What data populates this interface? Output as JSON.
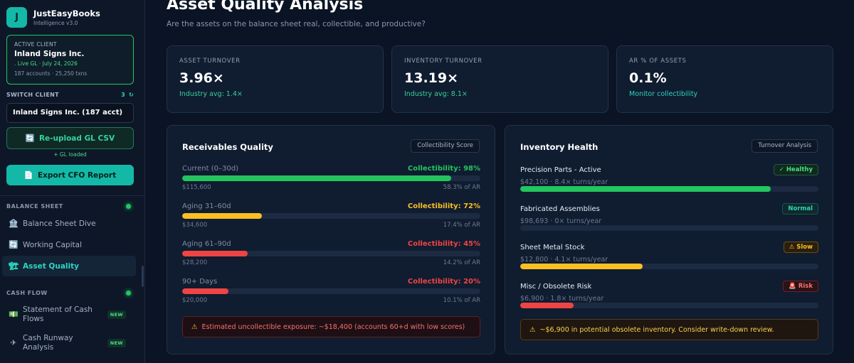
{
  "brand": {
    "logo_letter": "J",
    "name": "JustEasyBooks",
    "version": "Intelligence v3.0"
  },
  "client_card": {
    "label": "ACTIVE CLIENT",
    "name": "Inland Signs Inc.",
    "status": ". Live GL · July 24, 2026",
    "meta": "187 accounts · 25,250 txns"
  },
  "switch_client": {
    "label": "SWITCH CLIENT",
    "count": "3",
    "refresh_icon": "↻",
    "selected": "Inland Signs Inc. (187 acct)"
  },
  "buttons": {
    "upload_icon": "🔄",
    "upload_label": "Re-upload GL CSV",
    "gl_loaded": "+ GL loaded",
    "export_icon": "📄",
    "export_label": "Export CFO Report"
  },
  "sections": {
    "balance_sheet": "BALANCE SHEET",
    "cash_flow": "CASH FLOW"
  },
  "nav": {
    "balance_sheet_dive": {
      "icon": "🏦",
      "label": "Balance Sheet Dive"
    },
    "working_capital": {
      "icon": "🔄",
      "label": "Working Capital"
    },
    "asset_quality": {
      "icon": "🏗",
      "label": "Asset Quality"
    },
    "statement_cash_flows": {
      "icon": "💵",
      "label_line1": "Statement of Cash",
      "label_line2": "Flows",
      "badge": "NEW"
    },
    "cash_runway": {
      "icon": "✈",
      "label_line1": "Cash Runway",
      "label_line2": "Analysis",
      "badge": "NEW"
    }
  },
  "header": {
    "title": "Asset Quality Analysis",
    "subtitle": "Are the assets on the balance sheet real, collectible, and productive?"
  },
  "kpis": [
    {
      "label": "ASSET TURNOVER",
      "value": "3.96×",
      "sub": "Industry avg: 1.4×"
    },
    {
      "label": "INVENTORY TURNOVER",
      "value": "13.19×",
      "sub": "Industry avg: 8.1×"
    },
    {
      "label": "AR % OF ASSETS",
      "value": "0.1%",
      "sub": "Monitor collectibility"
    }
  ],
  "receivables": {
    "title": "Receivables Quality",
    "tag": "Collectibility Score",
    "rows": [
      {
        "name": "Current (0–30d)",
        "score": "Collectibility: 98%",
        "amount": "$115,600",
        "share": "58.3% of AR",
        "fill": 0.903,
        "color": "#22c55e"
      },
      {
        "name": "Aging 31–60d",
        "score": "Collectibility: 72%",
        "amount": "$34,600",
        "share": "17.4% of AR",
        "fill": 0.268,
        "color": "#fbbf24"
      },
      {
        "name": "Aging 61–90d",
        "score": "Collectibility: 45%",
        "amount": "$28,200",
        "share": "14.2% of AR",
        "fill": 0.219,
        "color": "#ef4444"
      },
      {
        "name": "90+ Days",
        "score": "Collectibility: 20%",
        "amount": "$20,000",
        "share": "10.1% of AR",
        "fill": 0.155,
        "color": "#ef4444"
      }
    ],
    "alert_icon": "⚠",
    "alert": "Estimated uncollectible exposure: ~$18,400 (accounts 60+d with low scores)"
  },
  "inventory": {
    "title": "Inventory Health",
    "tag": "Turnover Analysis",
    "rows": [
      {
        "name": "Precision Parts - Active",
        "badge": "✓ Healthy",
        "meta": "$42,100 · 8.4× turns/year",
        "fill": 0.84,
        "color": "#22c55e"
      },
      {
        "name": "Fabricated Assemblies",
        "badge": "Normal",
        "meta": "$98,693 · 0× turns/year",
        "fill": 0,
        "color": "#2dd4bf"
      },
      {
        "name": "Sheet Metal Stock",
        "badge": "⚠ Slow",
        "meta": "$12,800 · 4.1× turns/year",
        "fill": 0.41,
        "color": "#fbbf24"
      },
      {
        "name": "Misc / Obsolete Risk",
        "badge": "🚨 Risk",
        "meta": "$6,900 · 1.8× turns/year",
        "fill": 0.18,
        "color": "#ef4444"
      }
    ],
    "alert_icon": "⚠",
    "alert": "~$6,900 in potential obsolete inventory. Consider write-down review."
  },
  "colors": {
    "accent": "#14b8a6",
    "good": "#22c55e",
    "warn": "#fbbf24",
    "bad": "#ef4444"
  }
}
